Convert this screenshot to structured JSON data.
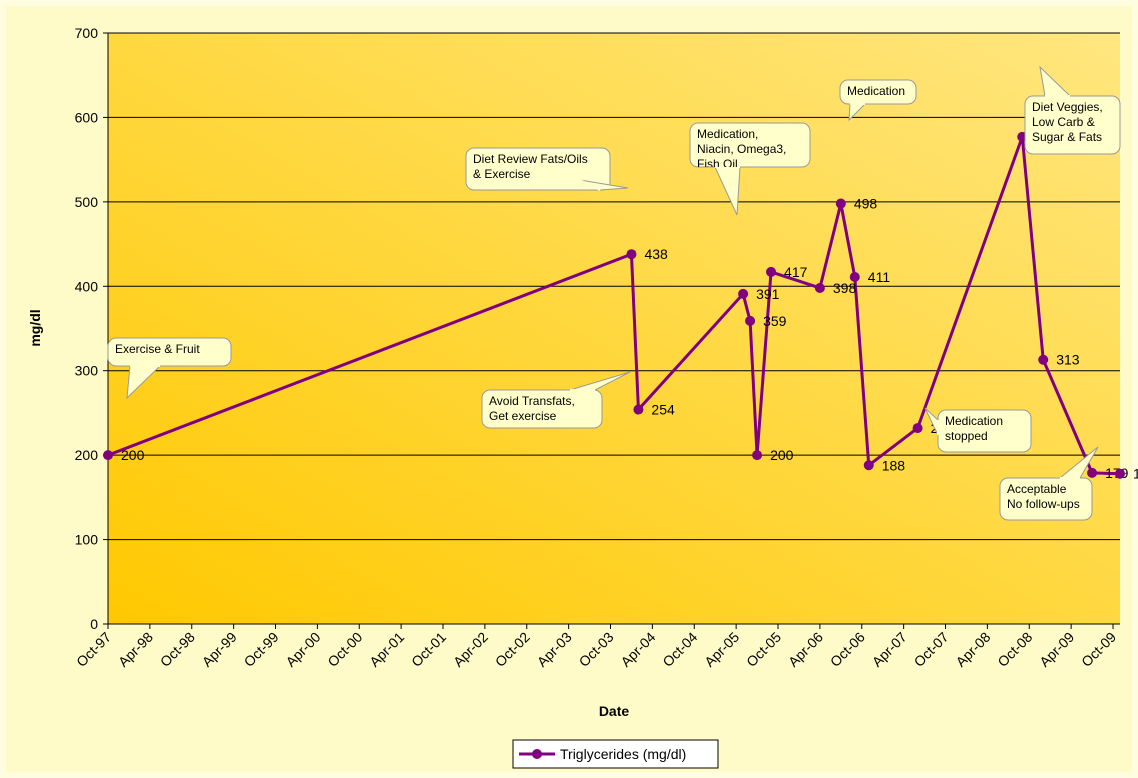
{
  "chart_data": {
    "type": "line",
    "x_label": "Date",
    "y_label": "mg/dl",
    "x": [
      "1997-10",
      "2004-01",
      "2004-02",
      "2005-05",
      "2005-06",
      "2005-07",
      "2005-09",
      "2006-04",
      "2006-07",
      "2006-09",
      "2006-11",
      "2007-06",
      "2008-09",
      "2008-12",
      "2009-07",
      "2009-11"
    ],
    "series": [
      {
        "name": "Triglycerides (mg/dl)",
        "color": "#800080",
        "values": [
          200,
          438,
          254,
          391,
          359,
          200,
          417,
          398,
          498,
          411,
          188,
          232,
          577,
          313,
          179,
          178
        ]
      }
    ],
    "xlim": [
      "1997-10",
      "2009-11"
    ],
    "xticks": [
      {
        "value": "1997-10",
        "label": "Oct-97"
      },
      {
        "value": "1998-04",
        "label": "Apr-98"
      },
      {
        "value": "1998-10",
        "label": "Oct-98"
      },
      {
        "value": "1999-04",
        "label": "Apr-99"
      },
      {
        "value": "1999-10",
        "label": "Oct-99"
      },
      {
        "value": "2000-04",
        "label": "Apr-00"
      },
      {
        "value": "2000-10",
        "label": "Oct-00"
      },
      {
        "value": "2001-04",
        "label": "Apr-01"
      },
      {
        "value": "2001-10",
        "label": "Oct-01"
      },
      {
        "value": "2002-04",
        "label": "Apr-02"
      },
      {
        "value": "2002-10",
        "label": "Oct-02"
      },
      {
        "value": "2003-04",
        "label": "Apr-03"
      },
      {
        "value": "2003-10",
        "label": "Oct-03"
      },
      {
        "value": "2004-04",
        "label": "Apr-04"
      },
      {
        "value": "2004-10",
        "label": "Oct-04"
      },
      {
        "value": "2005-04",
        "label": "Apr-05"
      },
      {
        "value": "2005-10",
        "label": "Oct-05"
      },
      {
        "value": "2006-04",
        "label": "Apr-06"
      },
      {
        "value": "2006-10",
        "label": "Oct-06"
      },
      {
        "value": "2007-04",
        "label": "Apr-07"
      },
      {
        "value": "2007-10",
        "label": "Oct-07"
      },
      {
        "value": "2008-04",
        "label": "Apr-08"
      },
      {
        "value": "2008-10",
        "label": "Oct-08"
      },
      {
        "value": "2009-04",
        "label": "Apr-09"
      },
      {
        "value": "2009-10",
        "label": "Oct-09"
      }
    ],
    "ylim": [
      0,
      700
    ],
    "yticks": [
      0,
      100,
      200,
      300,
      400,
      500,
      600,
      700
    ],
    "grid": true,
    "legend": "bottom",
    "annotations": [
      {
        "lines": [
          "Exercise & Fruit"
        ]
      },
      {
        "lines": [
          "Diet Review Fats/Oils",
          "& Exercise"
        ]
      },
      {
        "lines": [
          "Avoid Transfats,",
          "Get exercise"
        ]
      },
      {
        "lines": [
          "Medication,",
          "Niacin, Omega3,",
          "Fish Oil"
        ]
      },
      {
        "lines": [
          "Medication"
        ]
      },
      {
        "lines": [
          "Medication",
          "stopped"
        ]
      },
      {
        "lines": [
          "Diet Veggies,",
          "Low Carb &",
          "Sugar & Fats"
        ]
      },
      {
        "lines": [
          "Acceptable",
          "No follow-ups"
        ]
      }
    ]
  }
}
